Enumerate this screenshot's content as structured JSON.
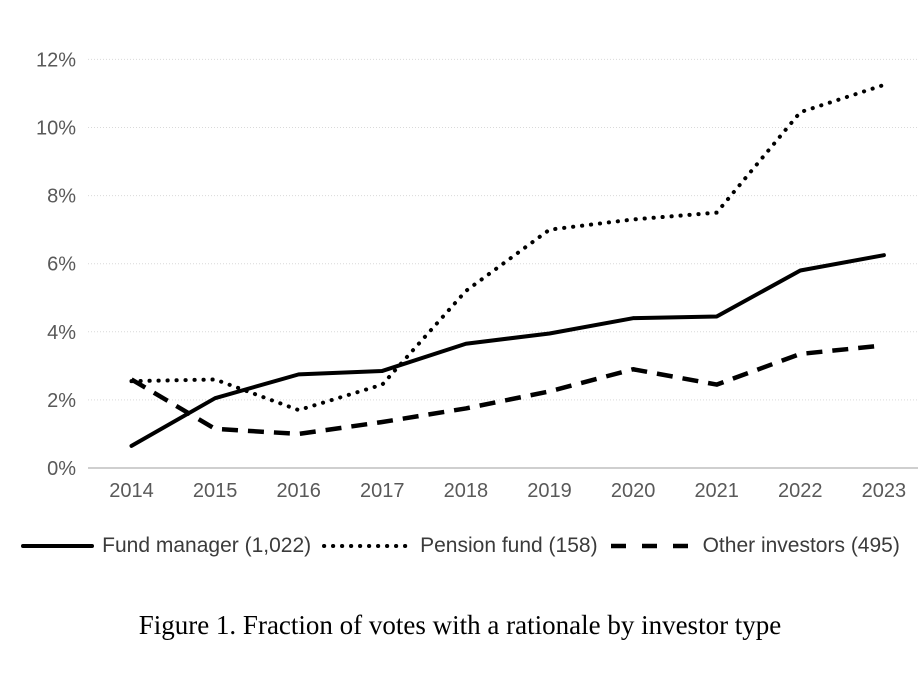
{
  "figure": {
    "caption": "Figure 1. Fraction of votes with a rationale by investor type"
  },
  "colors": {
    "line": "#000000",
    "axis_label": "#595959",
    "gridline": "#d9d9d9",
    "axis_line": "#bfbfbf",
    "legend_text": "#3b3b3b"
  },
  "chart_data": {
    "type": "line",
    "title": "",
    "xlabel": "",
    "ylabel": "",
    "x": [
      2014,
      2015,
      2016,
      2017,
      2018,
      2019,
      2020,
      2021,
      2022,
      2023
    ],
    "series": [
      {
        "name": "Fund manager (1,022)",
        "style": "solid",
        "values": [
          0.65,
          2.05,
          2.75,
          2.85,
          3.65,
          3.95,
          4.4,
          4.45,
          5.8,
          6.25
        ]
      },
      {
        "name": "Pension fund (158)",
        "style": "dotted",
        "values": [
          2.55,
          2.6,
          1.7,
          2.45,
          5.2,
          7.0,
          7.3,
          7.5,
          10.45,
          11.25
        ]
      },
      {
        "name": "Other investors (495)",
        "style": "dashed",
        "values": [
          2.6,
          1.15,
          1.0,
          1.35,
          1.75,
          2.25,
          2.9,
          2.45,
          3.35,
          3.6
        ]
      }
    ],
    "ylim": [
      0,
      12
    ],
    "y_tick_step": 2,
    "y_tick_labels": [
      "0%",
      "2%",
      "4%",
      "6%",
      "8%",
      "10%",
      "12%"
    ],
    "grid": "horizontal-dotted",
    "legend_position": "bottom"
  }
}
